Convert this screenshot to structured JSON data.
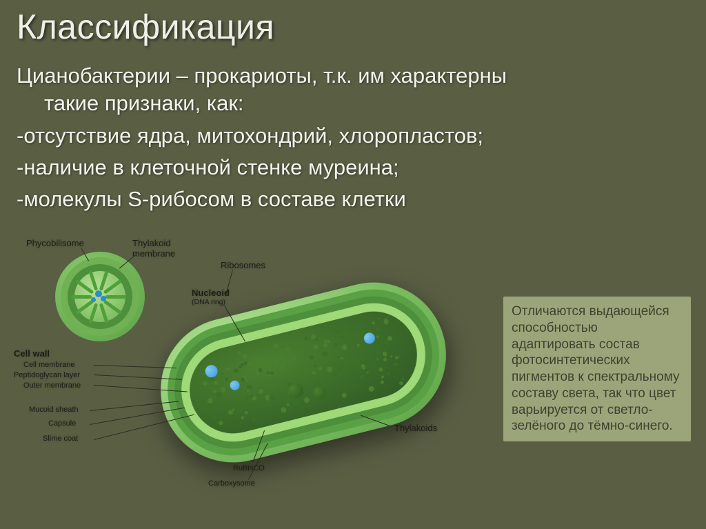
{
  "colors": {
    "background": "#5a5f44",
    "title": "#eef0e8",
    "body": "#f2f3ec",
    "sidebox_bg": "#9ca57a",
    "sidebox_text": "#3e422e",
    "diagram_label": "#1d1f16",
    "line": "#2b2d21",
    "cell_outer_glow": "#b9e89a",
    "cell_outer": "#7fbf64",
    "cell_mid": "#5aa145",
    "cell_mid2": "#4e8f3b",
    "cell_inner_wall": "#9fd978",
    "cell_inner": "#2f5a24",
    "nucleoid": "#4a7f2f",
    "ribosome": "#3a9bd8",
    "carboxysome": "#2e5b20",
    "cs_outer": "#8cc96e",
    "cs_ring": "#6fb153",
    "cs_core": "#b6e296",
    "cs_spoke": "#4fa038",
    "cs_center": "#2e8bc9"
  },
  "title": "Классификация",
  "body": {
    "intro1": "Цианобактерии – прокариоты, т.к. им характерны",
    "intro2": "такие признаки, как:",
    "b1": "-отсутствие ядра, митохондрий, хлоропластов;",
    "b2": "-наличие в клеточной стенке муреина;",
    "b3": "-молекулы S-рибосом в составе клетки"
  },
  "sidebox": "Отличаются выдающейся способностью адаптировать состав фотосинтетических пигментов к спектральному составу света, так что цвет варьируется от светло-зелёного до тёмно-синего.",
  "labels": {
    "phycobilisome": "Phycobilisome",
    "thylakoid_membrane": "Thylakoid\nmembrane",
    "ribosomes": "Ribosomes",
    "nucleoid": "Nucleoid",
    "nucleoid_sub": "(DNA ring)",
    "cell_wall": "Cell wall",
    "cell_membrane": "Cell membrane",
    "peptidoglycan": "Peptidoglycan layer",
    "outer_membrane": "Outer membrane",
    "mucoid_sheath": "Mucoid sheath",
    "capsule": "Capsule",
    "slime_coat": "Slime coat",
    "rubisco": "RuBisCO",
    "carboxysome": "Carboxysome",
    "thylakoids": "Thylakoids"
  }
}
